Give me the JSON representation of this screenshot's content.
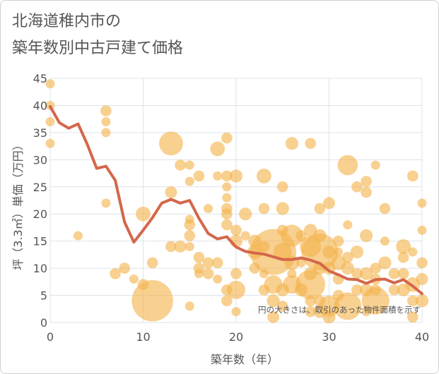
{
  "title_line1": "北海道稚内市の",
  "title_line2": "築年数別中古戸建て価格",
  "chart_data": {
    "type": "scatter",
    "title": "北海道稚内市の 築年数別中古戸建て価格",
    "xlabel": "築年数（年）",
    "ylabel": "坪（3.3㎡）単価（万円）",
    "xlim": [
      0,
      40
    ],
    "ylim": [
      0,
      45
    ],
    "xticks": [
      0,
      10,
      20,
      30,
      40
    ],
    "yticks": [
      0,
      5,
      10,
      15,
      20,
      25,
      30,
      35,
      40,
      45
    ],
    "grid": true,
    "note": "円の大きさは、取引のあった物件面積を示す",
    "colors": {
      "bubble": "#f3b34c",
      "line": "#d4674b",
      "grid": "#dde3ea"
    },
    "bubbles": [
      [
        0,
        44,
        1
      ],
      [
        0,
        40,
        1
      ],
      [
        0,
        37,
        1
      ],
      [
        0,
        33,
        1
      ],
      [
        3,
        16,
        1
      ],
      [
        6,
        39,
        1.2
      ],
      [
        6,
        37,
        1
      ],
      [
        6,
        35,
        1
      ],
      [
        6,
        22,
        1
      ],
      [
        7,
        9,
        1.2
      ],
      [
        8,
        10,
        1.2
      ],
      [
        9,
        8,
        1
      ],
      [
        10,
        20,
        1.6
      ],
      [
        10,
        7,
        1.2
      ],
      [
        11,
        11,
        1.2
      ],
      [
        11,
        4,
        4.5
      ],
      [
        13,
        33,
        2.6
      ],
      [
        13,
        24,
        1.3
      ],
      [
        13,
        14,
        1.2
      ],
      [
        14,
        29,
        1.2
      ],
      [
        14,
        14,
        1.3
      ],
      [
        15,
        29,
        1
      ],
      [
        15,
        26,
        1
      ],
      [
        15,
        19,
        1
      ],
      [
        15,
        18,
        1.2
      ],
      [
        15,
        16,
        1.2
      ],
      [
        15,
        14,
        1
      ],
      [
        15,
        3,
        1
      ],
      [
        16,
        27,
        1.2
      ],
      [
        16,
        12,
        1.2
      ],
      [
        16,
        10,
        1.2
      ],
      [
        16,
        9,
        1
      ],
      [
        17,
        21,
        1
      ],
      [
        17,
        11,
        1.2
      ],
      [
        17,
        9,
        1.2
      ],
      [
        18,
        32,
        1.6
      ],
      [
        18,
        27,
        1
      ],
      [
        18,
        11,
        1.2
      ],
      [
        18,
        8,
        1
      ],
      [
        19,
        34,
        1.2
      ],
      [
        19,
        27,
        1.2
      ],
      [
        19,
        25,
        1
      ],
      [
        19,
        23,
        1
      ],
      [
        19,
        21,
        1.2
      ],
      [
        19,
        20,
        1.2
      ],
      [
        19,
        18,
        1.2
      ],
      [
        19,
        6,
        1.2
      ],
      [
        19,
        4,
        1.2
      ],
      [
        20,
        27,
        1.4
      ],
      [
        20,
        17,
        1.2
      ],
      [
        20,
        15,
        1.4
      ],
      [
        20,
        9,
        1.2
      ],
      [
        20,
        6,
        2
      ],
      [
        20,
        2,
        1
      ],
      [
        21,
        20,
        1.4
      ],
      [
        21,
        16,
        1
      ],
      [
        22,
        15,
        1.4
      ],
      [
        22,
        13,
        1.6
      ],
      [
        22,
        10,
        1.2
      ],
      [
        23,
        27,
        1.6
      ],
      [
        23,
        21,
        1.2
      ],
      [
        23,
        14,
        1.2
      ],
      [
        23,
        9,
        1
      ],
      [
        23,
        6,
        1.2
      ],
      [
        24,
        13,
        5
      ],
      [
        24,
        7,
        2
      ],
      [
        24,
        4,
        1.4
      ],
      [
        24,
        1,
        1.3
      ],
      [
        25,
        25,
        1.2
      ],
      [
        25,
        21,
        1.4
      ],
      [
        25,
        17,
        1.2
      ],
      [
        25,
        13,
        2
      ],
      [
        25,
        6,
        1.4
      ],
      [
        25,
        3,
        1.2
      ],
      [
        26,
        33,
        1.4
      ],
      [
        26,
        16,
        2.4
      ],
      [
        26,
        11,
        1.6
      ],
      [
        26,
        9,
        1
      ],
      [
        26,
        7,
        2
      ],
      [
        27,
        16,
        1.2
      ],
      [
        27,
        11,
        1
      ],
      [
        27,
        6,
        1.4
      ],
      [
        28,
        33,
        1.2
      ],
      [
        28,
        17,
        1.4
      ],
      [
        28,
        14,
        2.3
      ],
      [
        28,
        9,
        1.4
      ],
      [
        28,
        7,
        3.2
      ],
      [
        28,
        4,
        1.2
      ],
      [
        28,
        2,
        1.2
      ],
      [
        29,
        21,
        1.2
      ],
      [
        29,
        16,
        1.4
      ],
      [
        29,
        13,
        4
      ],
      [
        29,
        10,
        1.4
      ],
      [
        29,
        4,
        1.2
      ],
      [
        29,
        2,
        1.4
      ],
      [
        30,
        22,
        1.3
      ],
      [
        30,
        13,
        1.4
      ],
      [
        30,
        10,
        1.4
      ],
      [
        30,
        3,
        2.3
      ],
      [
        30,
        1,
        1.4
      ],
      [
        31,
        15,
        1.2
      ],
      [
        31,
        13,
        1
      ],
      [
        31,
        11,
        1.6
      ],
      [
        31,
        8,
        1.2
      ],
      [
        31,
        5,
        1.2
      ],
      [
        32,
        29,
        2.2
      ],
      [
        32,
        18,
        1
      ],
      [
        32,
        12,
        1.2
      ],
      [
        32,
        10,
        1.4
      ],
      [
        32,
        3,
        3
      ],
      [
        33,
        25,
        1.2
      ],
      [
        33,
        13,
        1.4
      ],
      [
        33,
        9,
        1.2
      ],
      [
        33,
        6,
        1.2
      ],
      [
        34,
        26,
        1.2
      ],
      [
        34,
        24,
        1.2
      ],
      [
        34,
        16,
        1.4
      ],
      [
        34,
        9,
        1.4
      ],
      [
        34,
        6,
        1.4
      ],
      [
        34,
        2,
        1
      ],
      [
        35,
        29,
        1
      ],
      [
        35,
        10,
        1.2
      ],
      [
        35,
        8,
        1.2
      ],
      [
        35,
        6,
        1.2
      ],
      [
        35,
        4,
        3
      ],
      [
        36,
        21,
        1.2
      ],
      [
        36,
        15,
        1
      ],
      [
        36,
        11,
        1.4
      ],
      [
        37,
        9,
        1.2
      ],
      [
        37,
        6,
        1.2
      ],
      [
        38,
        14,
        1.6
      ],
      [
        38,
        12,
        1.2
      ],
      [
        38,
        9,
        1.2
      ],
      [
        38,
        6,
        1.4
      ],
      [
        39,
        27,
        1.2
      ],
      [
        39,
        13,
        1
      ],
      [
        39,
        7,
        1.6
      ],
      [
        39,
        4,
        1.2
      ],
      [
        39,
        1,
        1.2
      ],
      [
        40,
        22,
        1
      ],
      [
        40,
        17,
        1
      ],
      [
        40,
        11,
        1.2
      ],
      [
        40,
        8,
        1.3
      ],
      [
        40,
        4,
        1.4
      ]
    ],
    "line": {
      "x": [
        0,
        1,
        2,
        3,
        4,
        5,
        6,
        7,
        8,
        9,
        10,
        11,
        12,
        13,
        14,
        15,
        16,
        17,
        18,
        19,
        20,
        21,
        22,
        23,
        24,
        25,
        26,
        27,
        28,
        29,
        30,
        31,
        32,
        33,
        34,
        35,
        36,
        37,
        38,
        39,
        40
      ],
      "y": [
        39.8,
        36.8,
        35.8,
        36.6,
        32.8,
        28.4,
        28.8,
        26.2,
        18.5,
        14.8,
        17.0,
        19.3,
        22.0,
        22.7,
        22.0,
        22.5,
        19.2,
        16.4,
        15.4,
        15.8,
        13.9,
        13.1,
        12.8,
        12.6,
        12.1,
        11.6,
        11.6,
        11.9,
        11.5,
        10.9,
        9.5,
        8.8,
        8.0,
        7.9,
        7.2,
        7.9,
        8.0,
        7.3,
        7.9,
        6.7,
        5.3
      ]
    }
  }
}
